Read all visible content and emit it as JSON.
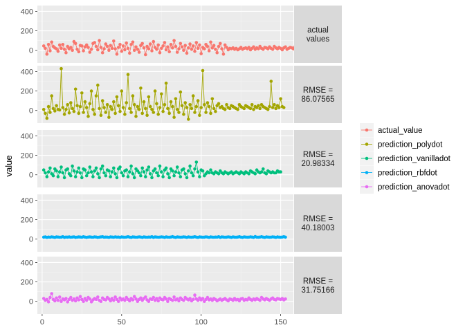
{
  "chart_data": {
    "type": "line",
    "facet": "rows",
    "ylabel": "value",
    "xlabel": "",
    "xlim": [
      -3,
      158
    ],
    "ylim": [
      -130,
      460
    ],
    "x_ticks": [
      0,
      50,
      100,
      150
    ],
    "y_ticks": [
      0,
      200,
      400
    ],
    "grid": true,
    "legend_position": "right",
    "colors": {
      "actual_value": "#F8766D",
      "prediction_polydot": "#A3A500",
      "prediction_vanilladot": "#00BF7D",
      "prediction_rbfdot": "#00B0F6",
      "prediction_anovadot": "#E76BF3"
    },
    "strip_labels": [
      "actual\nvalues",
      "RMSE =\n86.07565",
      "RMSE =\n20.98334",
      "RMSE =\n40.18003",
      "RMSE =\n31.75166"
    ],
    "legend": [
      "actual_value",
      "prediction_polydot",
      "prediction_vanilladot",
      "prediction_rbfdot",
      "prediction_anovadot"
    ],
    "series": [
      {
        "name": "actual_value",
        "values": [
          45,
          20,
          -40,
          60,
          -5,
          85,
          40,
          25,
          15,
          -10,
          55,
          20,
          60,
          10,
          -25,
          40,
          15,
          30,
          0,
          90,
          70,
          10,
          -15,
          50,
          45,
          -5,
          35,
          55,
          30,
          -20,
          10,
          70,
          80,
          40,
          5,
          100,
          30,
          -25,
          15,
          65,
          40,
          0,
          50,
          20,
          95,
          15,
          -40,
          30,
          60,
          -10,
          45,
          5,
          75,
          20,
          -30,
          60,
          85,
          0,
          35,
          10,
          -20,
          50,
          70,
          25,
          -45,
          40,
          15,
          65,
          -5,
          90,
          30,
          10,
          55,
          -25,
          20,
          45,
          80,
          5,
          35,
          -15,
          60,
          25,
          100,
          40,
          -20,
          15,
          70,
          35,
          0,
          50,
          -30,
          25,
          65,
          10,
          45,
          -10,
          80,
          20,
          55,
          -35,
          30,
          15,
          60,
          40,
          -5,
          85,
          25,
          50,
          10,
          -25,
          40,
          70,
          15,
          -40,
          55,
          30,
          5,
          20,
          15,
          25,
          10,
          20,
          5,
          15,
          30,
          10,
          20,
          25,
          15,
          30,
          5,
          20,
          35,
          10,
          25,
          15,
          40,
          20,
          10,
          30,
          25,
          15,
          35,
          20,
          10,
          40,
          25,
          15,
          30,
          20,
          5,
          25,
          35,
          10,
          20,
          30,
          25,
          15,
          35,
          30,
          20,
          40,
          25
        ]
      },
      {
        "name": "prediction_polydot",
        "values": [
          10,
          -30,
          -80,
          40,
          -20,
          150,
          20,
          -5,
          50,
          10,
          5,
          430,
          30,
          -40,
          10,
          60,
          -25,
          80,
          20,
          -10,
          220,
          50,
          -30,
          40,
          180,
          -20,
          90,
          30,
          -60,
          70,
          200,
          10,
          -40,
          150,
          260,
          20,
          -50,
          100,
          30,
          -20,
          60,
          -70,
          40,
          10,
          90,
          -30,
          140,
          50,
          -10,
          200,
          30,
          -40,
          80,
          370,
          20,
          -20,
          150,
          60,
          -60,
          40,
          10,
          230,
          -30,
          90,
          20,
          -50,
          140,
          40,
          10,
          -20,
          200,
          70,
          -40,
          30,
          170,
          -10,
          60,
          280,
          20,
          -30,
          90,
          40,
          -70,
          120,
          10,
          -20,
          190,
          50,
          -40,
          80,
          30,
          -90,
          60,
          20,
          150,
          -20,
          40,
          100,
          -50,
          30,
          410,
          60,
          -20,
          80,
          40,
          -30,
          120,
          20,
          -10,
          50,
          70,
          30,
          40,
          20,
          10,
          60,
          30,
          20,
          50,
          40,
          30,
          20,
          10,
          60,
          40,
          30,
          20,
          50,
          40,
          30,
          20,
          60,
          10,
          40,
          30,
          50,
          20,
          60,
          40,
          30,
          20,
          10,
          40,
          300,
          30,
          60,
          20,
          50,
          30,
          120,
          40,
          30
        ]
      },
      {
        "name": "prediction_vanilladot",
        "values": [
          50,
          20,
          -20,
          30,
          70,
          10,
          -10,
          60,
          40,
          -20,
          30,
          80,
          20,
          -30,
          50,
          60,
          10,
          -10,
          90,
          40,
          -20,
          30,
          70,
          20,
          -30,
          60,
          50,
          -10,
          20,
          80,
          30,
          -20,
          40,
          70,
          10,
          -30,
          60,
          90,
          20,
          -10,
          50,
          40,
          -20,
          30,
          70,
          10,
          -30,
          60,
          80,
          20,
          -10,
          40,
          50,
          -20,
          30,
          90,
          10,
          -30,
          60,
          40,
          20,
          -10,
          70,
          30,
          -20,
          50,
          80,
          10,
          -30,
          40,
          60,
          20,
          -10,
          90,
          30,
          -20,
          50,
          70,
          10,
          -30,
          60,
          40,
          -10,
          30,
          80,
          20,
          -20,
          50,
          60,
          10,
          -30,
          40,
          90,
          20,
          -10,
          60,
          130,
          30,
          -20,
          50,
          40,
          -10,
          10,
          30,
          20,
          50,
          20,
          10,
          30,
          20,
          10,
          40,
          20,
          10,
          30,
          20,
          10,
          20,
          30,
          10,
          20,
          30,
          20,
          10,
          30,
          20,
          10,
          30,
          20,
          10,
          40,
          30,
          20,
          10,
          50,
          30,
          20,
          30,
          60,
          20,
          10,
          40,
          30,
          20,
          30,
          20,
          20,
          40,
          30,
          30
        ]
      },
      {
        "name": "prediction_rbfdot",
        "values": [
          20,
          22,
          18,
          21,
          19,
          23,
          20,
          18,
          22,
          21,
          19,
          20,
          24,
          18,
          21,
          20,
          22,
          19,
          21,
          23,
          18,
          20,
          22,
          21,
          19,
          24,
          20,
          18,
          21,
          22,
          20,
          19,
          23,
          21,
          18,
          20,
          22,
          24,
          19,
          21,
          20,
          18,
          22,
          21,
          19,
          23,
          20,
          21,
          18,
          22,
          20,
          19,
          21,
          24,
          20,
          18,
          22,
          21,
          19,
          20,
          23,
          21,
          18,
          22,
          20,
          19,
          21,
          20,
          24,
          18,
          22,
          21,
          19,
          20,
          23,
          21,
          18,
          22,
          20,
          19,
          21,
          25,
          20,
          18,
          22,
          21,
          19,
          20,
          23,
          21,
          18,
          22,
          20,
          19,
          21,
          24,
          20,
          18,
          22,
          21,
          19,
          20,
          23,
          21,
          18,
          22,
          20,
          19,
          21,
          20,
          24,
          18,
          22,
          21,
          19,
          20,
          23,
          21,
          18,
          22,
          20,
          19,
          21,
          24,
          20,
          18,
          22,
          21,
          19,
          20,
          23,
          21,
          18,
          26,
          20,
          19,
          21,
          24,
          20,
          18,
          22,
          21,
          19,
          20,
          23,
          21,
          18,
          22,
          20,
          19,
          21,
          24,
          20
        ]
      },
      {
        "name": "prediction_anovadot",
        "values": [
          30,
          10,
          20,
          -5,
          40,
          80,
          20,
          5,
          35,
          10,
          45,
          0,
          25,
          15,
          30,
          -5,
          20,
          40,
          10,
          25,
          5,
          35,
          15,
          50,
          20,
          0,
          30,
          10,
          40,
          25,
          -5,
          15,
          30,
          20,
          45,
          10,
          0,
          35,
          20,
          15,
          40,
          25,
          5,
          30,
          10,
          45,
          20,
          0,
          35,
          15,
          25,
          10,
          40,
          20,
          5,
          30,
          15,
          50,
          25,
          0,
          20,
          35,
          10,
          30,
          45,
          15,
          0,
          25,
          20,
          40,
          10,
          30,
          5,
          35,
          20,
          15,
          40,
          25,
          0,
          30,
          20,
          10,
          45,
          15,
          25,
          5,
          35,
          20,
          10,
          40,
          25,
          15,
          30,
          5,
          20,
          65,
          25,
          10,
          35,
          15,
          30,
          0,
          20,
          40,
          15,
          25,
          10,
          30,
          20,
          5,
          15,
          25,
          10,
          20,
          30,
          15,
          5,
          25,
          20,
          10,
          30,
          15,
          20,
          5,
          25,
          30,
          10,
          20,
          15,
          35,
          20,
          10,
          25,
          15,
          30,
          20,
          10,
          40,
          25,
          15,
          30,
          20,
          10,
          25,
          35,
          20,
          15,
          30,
          25,
          20,
          30,
          15,
          25
        ]
      }
    ]
  }
}
